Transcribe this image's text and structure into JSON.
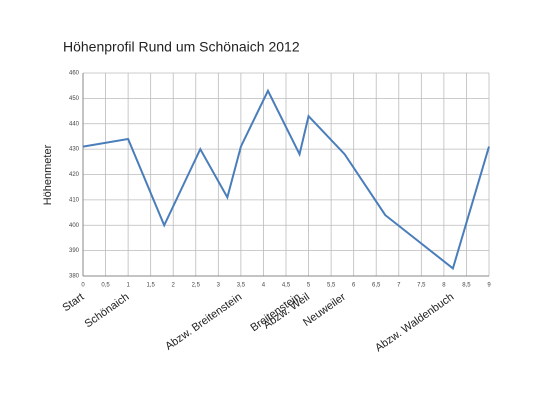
{
  "chart_data": {
    "type": "line",
    "title": "Höhenprofil Rund um Schönaich 2012",
    "y_label": "Höhenmeter",
    "x": [
      0,
      1,
      1.8,
      2.6,
      3.2,
      3.5,
      4.1,
      4.8,
      5,
      5.8,
      6.7,
      8.2,
      9
    ],
    "series": [
      {
        "color": "#4a7ebb",
        "values": [
          431,
          434,
          400,
          430,
          411,
          431,
          453,
          428,
          443,
          428,
          404,
          383,
          431
        ]
      }
    ],
    "xlim": [
      0,
      9
    ],
    "xticks": [
      0,
      {
        "value": 0.5,
        "label": "0,5"
      },
      1,
      {
        "value": 1.5,
        "label": "1,5"
      },
      2,
      {
        "value": 2.5,
        "label": "2,5"
      },
      3,
      {
        "value": 3.5,
        "label": "3,5"
      },
      4,
      {
        "value": 4.5,
        "label": "4,5"
      },
      5,
      {
        "value": 5.5,
        "label": "5,5"
      },
      6,
      {
        "value": 6.5,
        "label": "6,5"
      },
      7,
      {
        "value": 7.5,
        "label": "7,5"
      },
      8,
      {
        "value": 8.5,
        "label": "8,5"
      },
      9
    ],
    "ylim": [
      380,
      460
    ],
    "yticks": [
      380,
      390,
      400,
      410,
      420,
      430,
      440,
      450,
      460
    ],
    "grid": true,
    "annotations": [
      {
        "text": "Start",
        "x": 0
      },
      {
        "text": "Schönaich",
        "x": 1
      },
      {
        "text": "Abzw. Breitenstein",
        "x": 3.5
      },
      {
        "text": "Breitenstein",
        "x": 4.8
      },
      {
        "text": "Abzw. Weil",
        "x": 5
      },
      {
        "text": "Neuweiler",
        "x": 5.8
      },
      {
        "text": "Abzw. Waldenbuch",
        "x": 8.2
      }
    ]
  }
}
